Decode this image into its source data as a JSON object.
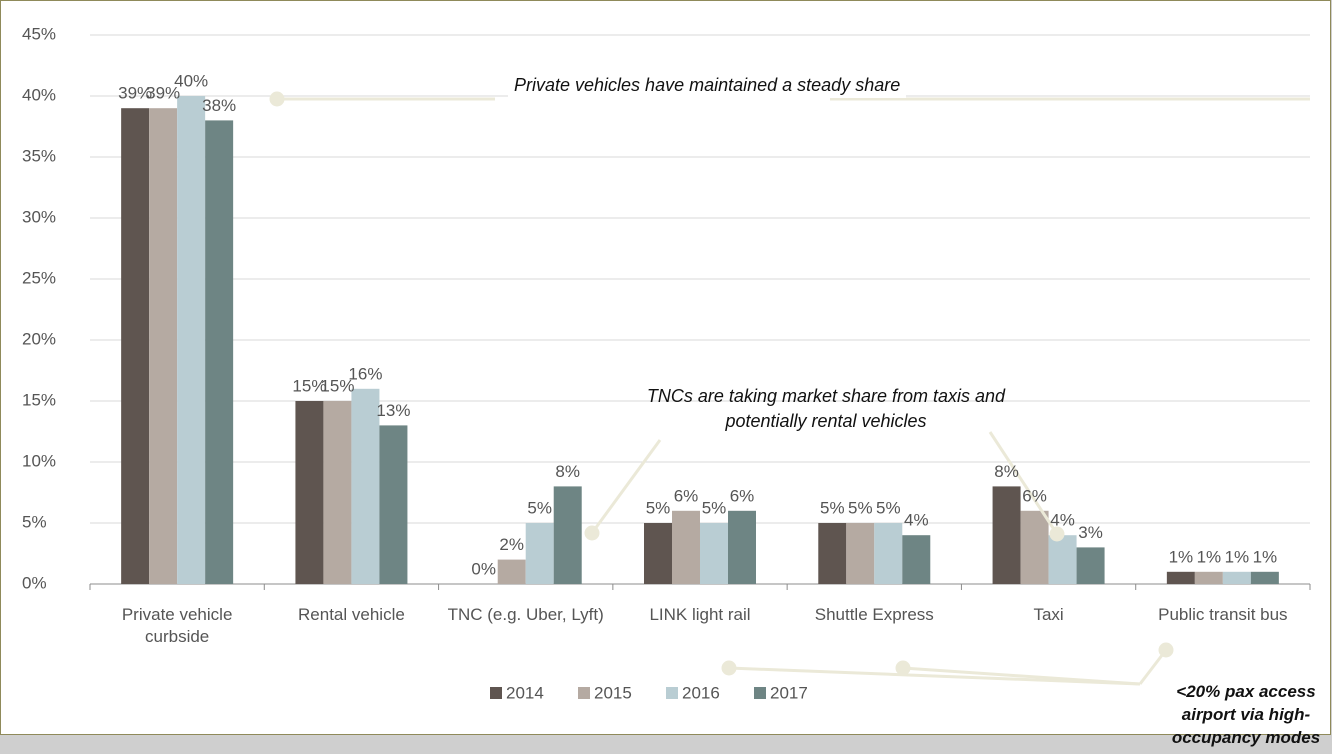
{
  "chart_data": {
    "type": "bar",
    "categories": [
      "Private vehicle curbside",
      "Rental vehicle",
      "TNC (e.g. Uber, Lyft)",
      "LINK light rail",
      "Shuttle Express",
      "Taxi",
      "Public transit bus"
    ],
    "series": [
      {
        "name": "2014",
        "color": "#5f5550",
        "values": [
          39,
          15,
          0,
          5,
          5,
          8,
          1
        ],
        "value_labels": [
          "39%",
          "15%",
          "0%",
          "5%",
          "5%",
          "8%",
          "1%"
        ]
      },
      {
        "name": "2015",
        "color": "#b5aaa2",
        "values": [
          39,
          15,
          2,
          6,
          5,
          6,
          1
        ],
        "value_labels": [
          "39%",
          "15%",
          "2%",
          "6%",
          "5%",
          "6%",
          "1%"
        ]
      },
      {
        "name": "2016",
        "color": "#b9cdd3",
        "values": [
          40,
          16,
          5,
          5,
          5,
          4,
          1
        ],
        "value_labels": [
          "40%",
          "16%",
          "5%",
          "5%",
          "5%",
          "4%",
          "1%"
        ]
      },
      {
        "name": "2017",
        "color": "#6e8584",
        "values": [
          38,
          13,
          8,
          6,
          4,
          3,
          1
        ],
        "value_labels": [
          "38%",
          "13%",
          "8%",
          "6%",
          "4%",
          "3%",
          "1%"
        ]
      }
    ],
    "ylim": [
      0,
      45
    ],
    "yticks": [
      {
        "value": 0,
        "label": "0%"
      },
      {
        "value": 5,
        "label": "5%"
      },
      {
        "value": 10,
        "label": "10%"
      },
      {
        "value": 15,
        "label": "15%"
      },
      {
        "value": 20,
        "label": "20%"
      },
      {
        "value": 25,
        "label": "25%"
      },
      {
        "value": 30,
        "label": "30%"
      },
      {
        "value": 35,
        "label": "35%"
      },
      {
        "value": 40,
        "label": "40%"
      },
      {
        "value": 45,
        "label": "45%"
      }
    ],
    "grid": true,
    "legend": "bottom",
    "annotations": [
      "Private vehicles have maintained a steady share",
      "TNCs are taking market share from taxis and potentially rental vehicles",
      "<20% pax access airport via high-occupancy modes"
    ]
  }
}
